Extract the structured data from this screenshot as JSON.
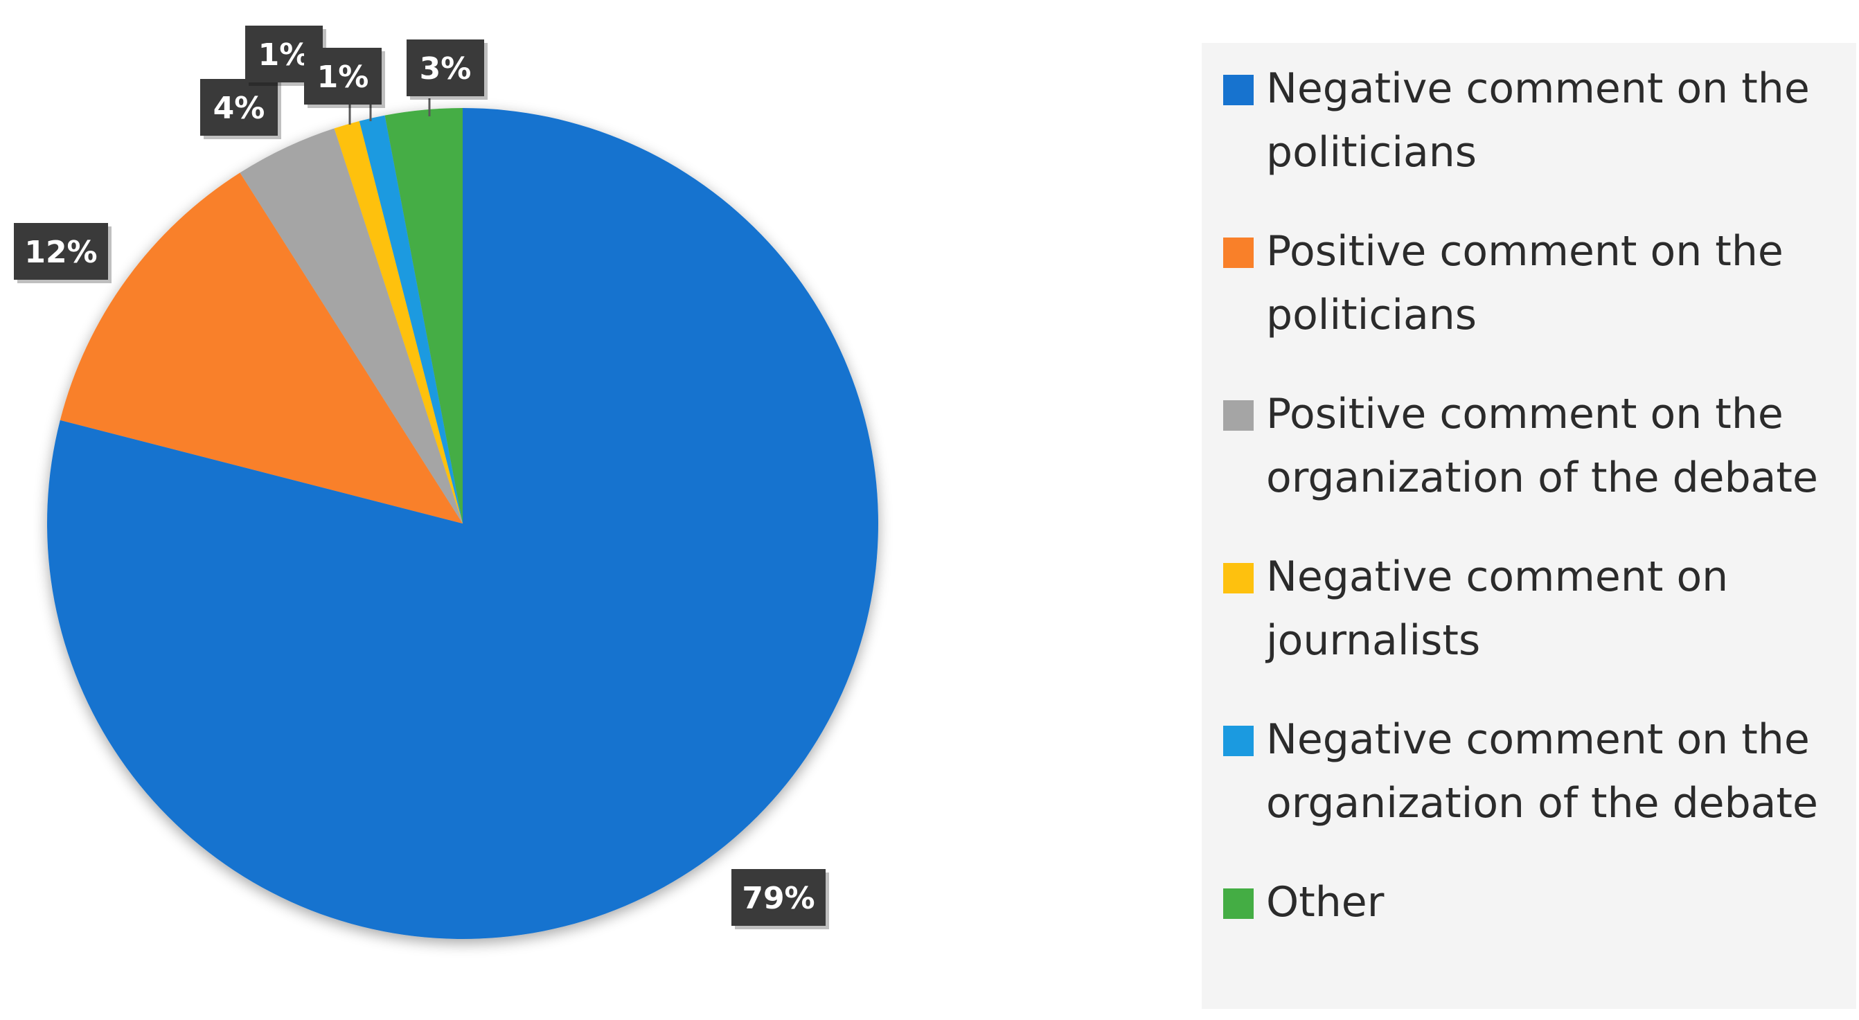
{
  "chart_data": {
    "type": "pie",
    "title": "",
    "legend_position": "right",
    "start_angle_deg": 0,
    "direction": "clockwise",
    "series": [
      {
        "name": "Negative comment on the politicians",
        "value": 79,
        "label": "79%",
        "color": "#1773cf"
      },
      {
        "name": "Positive comment on the politicians",
        "value": 12,
        "label": "12%",
        "color": "#f98029"
      },
      {
        "name": "Positive comment on the organization of the debate",
        "value": 4,
        "label": "4%",
        "color": "#a5a5a5"
      },
      {
        "name": "Negative comment on journalists",
        "value": 1,
        "label": "1%",
        "color": "#fec10e"
      },
      {
        "name": "Negative comment on the organization of the debate",
        "value": 1,
        "label": "1%",
        "color": "#1b9ae0"
      },
      {
        "name": "Other",
        "value": 3,
        "label": "3%",
        "color": "#44ad44"
      }
    ],
    "legend_lines": [
      [
        "Negative comment on the",
        "politicians"
      ],
      [
        "Positive comment on the",
        "politicians"
      ],
      [
        "Positive comment on the",
        "organization of the debate"
      ],
      [
        "Negative comment on",
        "journalists"
      ],
      [
        "Negative comment on the",
        "organization of the debate"
      ],
      [
        "Other"
      ]
    ]
  }
}
